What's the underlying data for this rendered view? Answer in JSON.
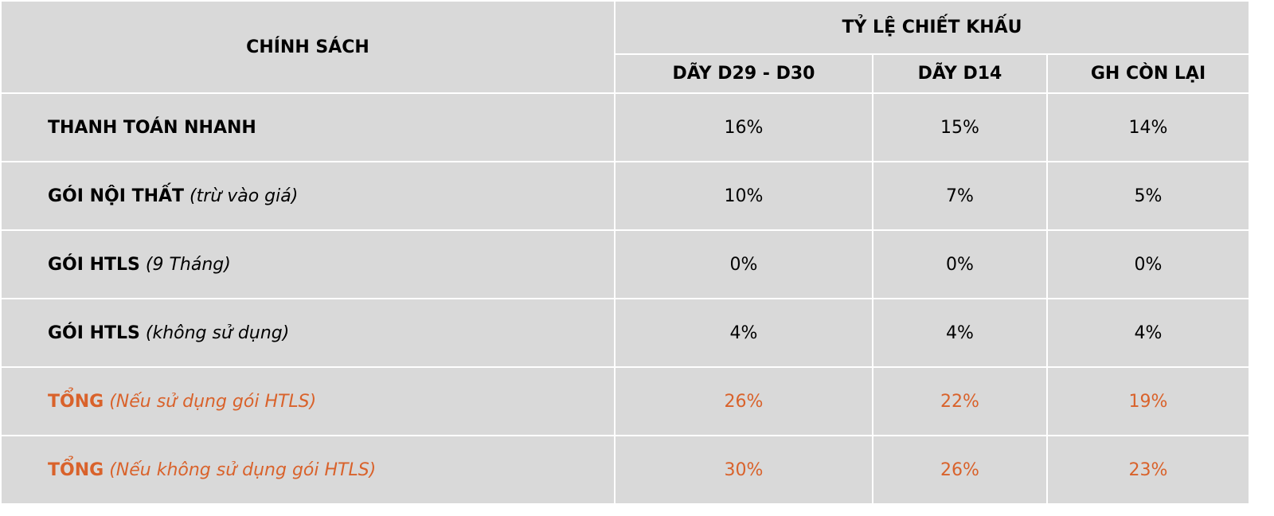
{
  "header": {
    "title": "CHÍNH SÁCH",
    "group": "TỶ LỆ CHIẾT KHẤU",
    "columns": [
      "DÃY D29 - D30",
      "DÃY D14",
      "GH CÒN LẠI"
    ]
  },
  "rows": [
    {
      "label": "THANH TOÁN NHANH",
      "values": [
        "16%",
        "15%",
        "14%"
      ]
    },
    {
      "label": "GÓI NỘI THẤT",
      "note": "(trừ vào giá)",
      "values": [
        "10%",
        "7%",
        "5%"
      ]
    },
    {
      "label": "GÓI HTLS",
      "note": "(9 Tháng)",
      "values": [
        "0%",
        "0%",
        "0%"
      ]
    },
    {
      "label": "GÓI HTLS",
      "note": "(không sử dụng)",
      "values": [
        "4%",
        "4%",
        "4%"
      ]
    },
    {
      "label": "TỔNG",
      "note": "(Nếu sử dụng gói HTLS)",
      "values": [
        "26%",
        "22%",
        "19%"
      ],
      "highlight": true
    },
    {
      "label": "TỔNG",
      "note": "(Nếu không sử dụng gói HTLS)",
      "values": [
        "30%",
        "26%",
        "23%"
      ],
      "highlight": true
    }
  ]
}
